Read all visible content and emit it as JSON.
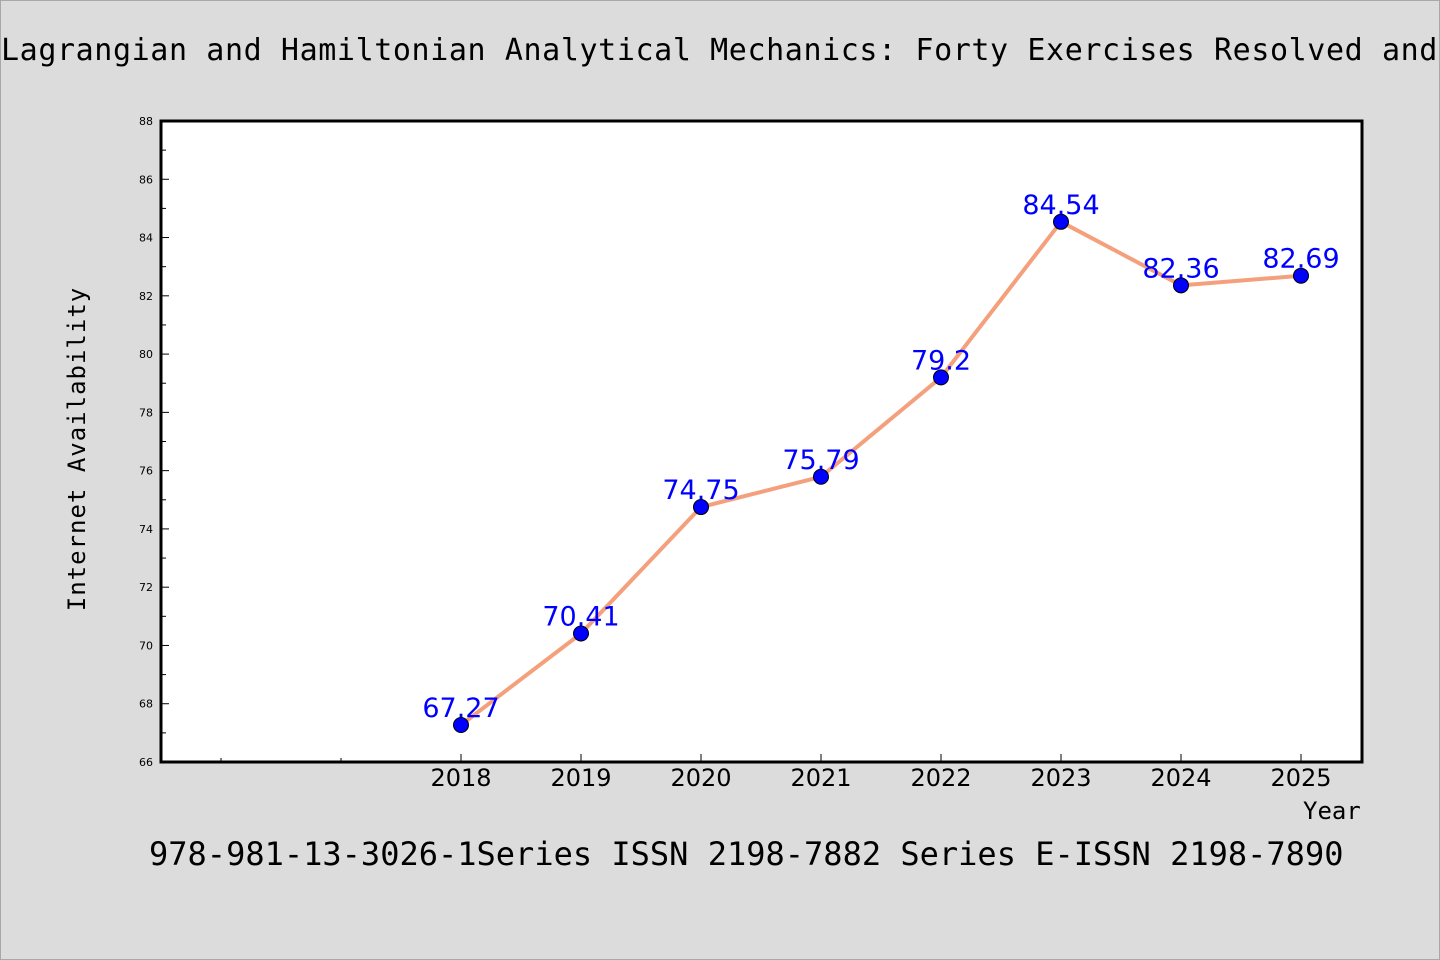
{
  "title": "Lagrangian and Hamiltonian Analytical Mechanics: Forty Exercises Resolved and Explained",
  "footer": "978-981-13-3026-1Series ISSN 2198-7882 Series E-ISSN 2198-7890",
  "chart_data": {
    "type": "line",
    "xlabel": "Year",
    "ylabel": "Internet Availability",
    "categories": [
      "2018",
      "2019",
      "2020",
      "2021",
      "2022",
      "2023",
      "2024",
      "2025"
    ],
    "values": [
      67.27,
      70.41,
      74.75,
      75.79,
      79.2,
      84.54,
      82.36,
      82.69
    ],
    "data_labels": [
      "67.27",
      "70.41",
      "74.75",
      "75.79",
      "79.2",
      "84.54",
      "82.36",
      "82.69"
    ],
    "ylim": [
      66,
      88
    ],
    "yticks": [
      66,
      68,
      70,
      72,
      74,
      76,
      78,
      80,
      82,
      84,
      86,
      88
    ],
    "grid": false,
    "legend": "none",
    "colors": {
      "line": "#f4a07c",
      "marker": "#0000ff",
      "data_label": "#0000ff",
      "plot_background": "#ffffff",
      "figure_background": "#dcdcdc"
    }
  }
}
